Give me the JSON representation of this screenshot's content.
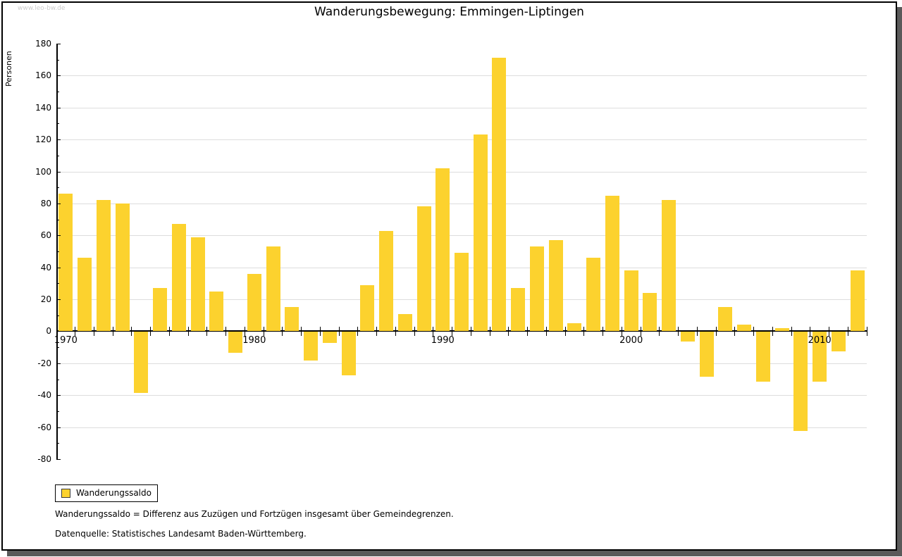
{
  "watermark": "www.leo-bw.de",
  "header": {
    "title": "Wanderungsbewegung: Emmingen-Liptingen"
  },
  "legend": {
    "label": "Wanderungssaldo"
  },
  "footnotes": {
    "definition": "Wanderungssaldo = Differenz aus Zuzügen und Fortzügen insgesamt über Gemeindegrenzen.",
    "source": "Datenquelle: Statistisches Landesamt Baden-Württemberg."
  },
  "colors": {
    "bar": "#FCD22E",
    "grid": "#dddddd",
    "axis": "#000000",
    "watermark": "#cbcbcb",
    "shadow": "#5a5a5a"
  },
  "chart_data": {
    "type": "bar",
    "title": "Wanderungsbewegung: Emmingen-Liptingen",
    "xlabel": "",
    "ylabel": "Personen",
    "ylim": [
      -80,
      180
    ],
    "ytick_major_step": 20,
    "ytick_minor_step": 10,
    "grid": true,
    "legend_position": "bottom-left",
    "x_axis_labeled_years": [
      1970,
      1980,
      1990,
      2000,
      2010
    ],
    "categories": [
      1970,
      1971,
      1972,
      1973,
      1974,
      1975,
      1976,
      1977,
      1978,
      1979,
      1980,
      1981,
      1982,
      1983,
      1984,
      1985,
      1986,
      1987,
      1988,
      1989,
      1990,
      1991,
      1992,
      1993,
      1994,
      1995,
      1996,
      1997,
      1998,
      1999,
      2000,
      2001,
      2002,
      2003,
      2004,
      2005,
      2006,
      2007,
      2008,
      2009,
      2010,
      2011,
      2012
    ],
    "series": [
      {
        "name": "Wanderungssaldo",
        "values": [
          86,
          46,
          82,
          80,
          -38,
          27,
          67,
          59,
          25,
          -13,
          36,
          53,
          15,
          -18,
          -7,
          -27,
          29,
          63,
          11,
          78,
          102,
          49,
          123,
          171,
          27,
          53,
          57,
          5,
          46,
          85,
          38,
          24,
          82,
          -6,
          -28,
          15,
          4,
          -31,
          2,
          -62,
          -31,
          -12,
          38
        ]
      }
    ]
  }
}
